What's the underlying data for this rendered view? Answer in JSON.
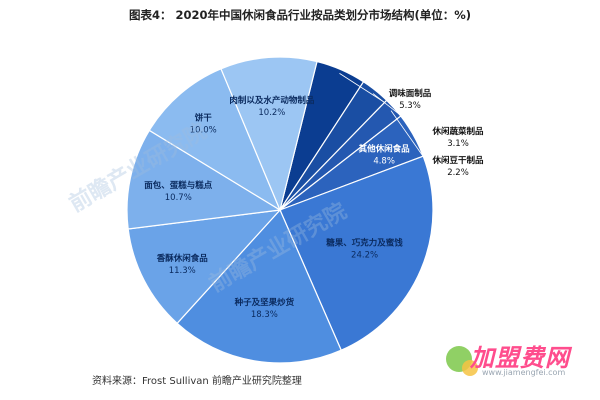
{
  "figure": {
    "title": "图表4： 2020年中国休闲食品行业按品类划分市场结构(单位：%)",
    "source": "资料来源：Frost Sullivan 前瞻产业研究院整理",
    "watermark_brand": "加盟费网",
    "watermark_url": "www.jiamengfei.com",
    "watermark_faint": "前瞻产业研究院"
  },
  "chart_data": {
    "type": "pie",
    "title": "图表4： 2020年中国休闲食品行业按品类划分市场结构(单位：%)",
    "unit": "%",
    "slices": [
      {
        "label": "调味面制品",
        "value": 5.3,
        "value_label": "5.3%",
        "color": "#0b3d91"
      },
      {
        "label": "休闲蔬菜制品",
        "value": 3.1,
        "value_label": "3.1%",
        "color": "#1a4ea3"
      },
      {
        "label": "休闲豆干制品",
        "value": 2.2,
        "value_label": "2.2%",
        "color": "#2458b0"
      },
      {
        "label": "其他休闲食品",
        "value": 4.8,
        "value_label": "4.8%",
        "color": "#2c63bd"
      },
      {
        "label": "糖果、巧克力及蜜饯",
        "value": 24.2,
        "value_label": "24.2%",
        "color": "#3a78d4"
      },
      {
        "label": "种子及坚果炒货",
        "value": 18.3,
        "value_label": "18.3%",
        "color": "#4f8ee0"
      },
      {
        "label": "香酥休闲食品",
        "value": 11.3,
        "value_label": "11.3%",
        "color": "#6aa3e8"
      },
      {
        "label": "面包、蛋糕与糕点",
        "value": 10.7,
        "value_label": "10.7%",
        "color": "#7db0ec"
      },
      {
        "label": "饼干",
        "value": 10.0,
        "value_label": "10.0%",
        "color": "#8bbbf0"
      },
      {
        "label": "肉制以及水产动物制品",
        "value": 10.2,
        "value_label": "10.2%",
        "color": "#9cc6f3"
      }
    ]
  }
}
